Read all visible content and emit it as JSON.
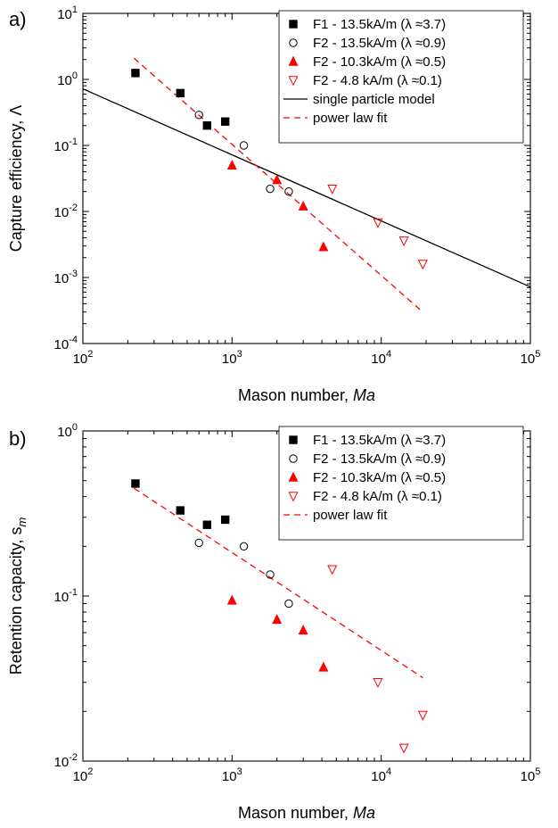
{
  "chart_data": [
    {
      "type": "scatter",
      "panel_label": "a)",
      "xlabel": "Mason number, ",
      "xlabel_italic": "Ma",
      "ylabel": "Capture efficiency, Λ",
      "xscale": "log",
      "yscale": "log",
      "xlim": [
        100,
        100000
      ],
      "ylim": [
        0.0001,
        10
      ],
      "x_ticks": [
        {
          "value": 100,
          "label": "10",
          "exp": "2"
        },
        {
          "value": 1000,
          "label": "10",
          "exp": "3"
        },
        {
          "value": 10000,
          "label": "10",
          "exp": "4"
        },
        {
          "value": 100000,
          "label": "10",
          "exp": "5"
        }
      ],
      "y_ticks": [
        {
          "value": 0.0001,
          "label": "10",
          "exp": "-4"
        },
        {
          "value": 0.001,
          "label": "10",
          "exp": "-3"
        },
        {
          "value": 0.01,
          "label": "10",
          "exp": "-2"
        },
        {
          "value": 0.1,
          "label": "10",
          "exp": "-1"
        },
        {
          "value": 1,
          "label": "10",
          "exp": "0"
        },
        {
          "value": 10,
          "label": "10",
          "exp": "1"
        }
      ],
      "legend_position": "top-right",
      "series": [
        {
          "name": "F1 - 13.5kA/m (λ ≈3.7)",
          "marker": "square-filled",
          "color": "#000000",
          "points": [
            [
              225,
              1.25
            ],
            [
              450,
              0.62
            ],
            [
              680,
              0.2
            ],
            [
              900,
              0.23
            ]
          ]
        },
        {
          "name": "F2 - 13.5kA/m (λ ≈0.9)",
          "marker": "circle-open",
          "color": "#000000",
          "points": [
            [
              600,
              0.29
            ],
            [
              1200,
              0.1
            ],
            [
              1800,
              0.022
            ],
            [
              2400,
              0.02
            ]
          ]
        },
        {
          "name": "F2 - 10.3kA/m (λ ≈0.5)",
          "marker": "triangle-up-filled",
          "color": "#ff0000",
          "points": [
            [
              1000,
              0.05
            ],
            [
              2000,
              0.03
            ],
            [
              3000,
              0.012
            ],
            [
              4100,
              0.0029
            ]
          ]
        },
        {
          "name": "F2 - 4.8 kA/m (λ ≈0.1)",
          "marker": "triangle-down-open",
          "color": "#ff0000",
          "points": [
            [
              4700,
              0.022
            ],
            [
              9500,
              0.0068
            ],
            [
              14200,
              0.0036
            ],
            [
              19000,
              0.0016
            ]
          ]
        },
        {
          "name": "single particle model",
          "line": "solid",
          "color": "#000000",
          "points": [
            [
              100,
              0.72
            ],
            [
              100000,
              0.00072
            ]
          ]
        },
        {
          "name": "power law fit",
          "line": "dashed",
          "color": "#ff0000",
          "points": [
            [
              220,
              2.1
            ],
            [
              19000,
              0.0003
            ]
          ]
        }
      ]
    },
    {
      "type": "scatter",
      "panel_label": "b)",
      "xlabel": "Mason number, ",
      "xlabel_italic": "Ma",
      "ylabel": "Retention capacity, s",
      "ylabel_sub": "m",
      "xscale": "log",
      "yscale": "log",
      "xlim": [
        100,
        100000
      ],
      "ylim": [
        0.01,
        1
      ],
      "x_ticks": [
        {
          "value": 100,
          "label": "10",
          "exp": "2"
        },
        {
          "value": 1000,
          "label": "10",
          "exp": "3"
        },
        {
          "value": 10000,
          "label": "10",
          "exp": "4"
        },
        {
          "value": 100000,
          "label": "10",
          "exp": "5"
        }
      ],
      "y_ticks": [
        {
          "value": 0.01,
          "label": "10",
          "exp": "-2"
        },
        {
          "value": 0.1,
          "label": "10",
          "exp": "-1"
        },
        {
          "value": 1,
          "label": "10",
          "exp": "0"
        }
      ],
      "legend_position": "top-right",
      "series": [
        {
          "name": "F1 - 13.5kA/m (λ ≈3.7)",
          "marker": "square-filled",
          "color": "#000000",
          "points": [
            [
              225,
              0.48
            ],
            [
              450,
              0.33
            ],
            [
              680,
              0.27
            ],
            [
              900,
              0.29
            ]
          ]
        },
        {
          "name": "F2 - 13.5kA/m (λ ≈0.9)",
          "marker": "circle-open",
          "color": "#000000",
          "points": [
            [
              600,
              0.21
            ],
            [
              1200,
              0.2
            ],
            [
              1800,
              0.135
            ],
            [
              2400,
              0.09
            ]
          ]
        },
        {
          "name": "F2 - 10.3kA/m (λ ≈0.5)",
          "marker": "triangle-up-filled",
          "color": "#ff0000",
          "points": [
            [
              1000,
              0.094
            ],
            [
              2000,
              0.072
            ],
            [
              3000,
              0.062
            ],
            [
              4100,
              0.037
            ]
          ]
        },
        {
          "name": "F2 - 4.8 kA/m (λ ≈0.1)",
          "marker": "triangle-down-open",
          "color": "#ff0000",
          "points": [
            [
              4700,
              0.145
            ],
            [
              9500,
              0.03
            ],
            [
              14200,
              0.012
            ],
            [
              19000,
              0.019
            ]
          ]
        },
        {
          "name": "power law fit",
          "line": "dashed",
          "color": "#ff0000",
          "points": [
            [
              220,
              0.45
            ],
            [
              19000,
              0.032
            ]
          ]
        }
      ]
    }
  ]
}
